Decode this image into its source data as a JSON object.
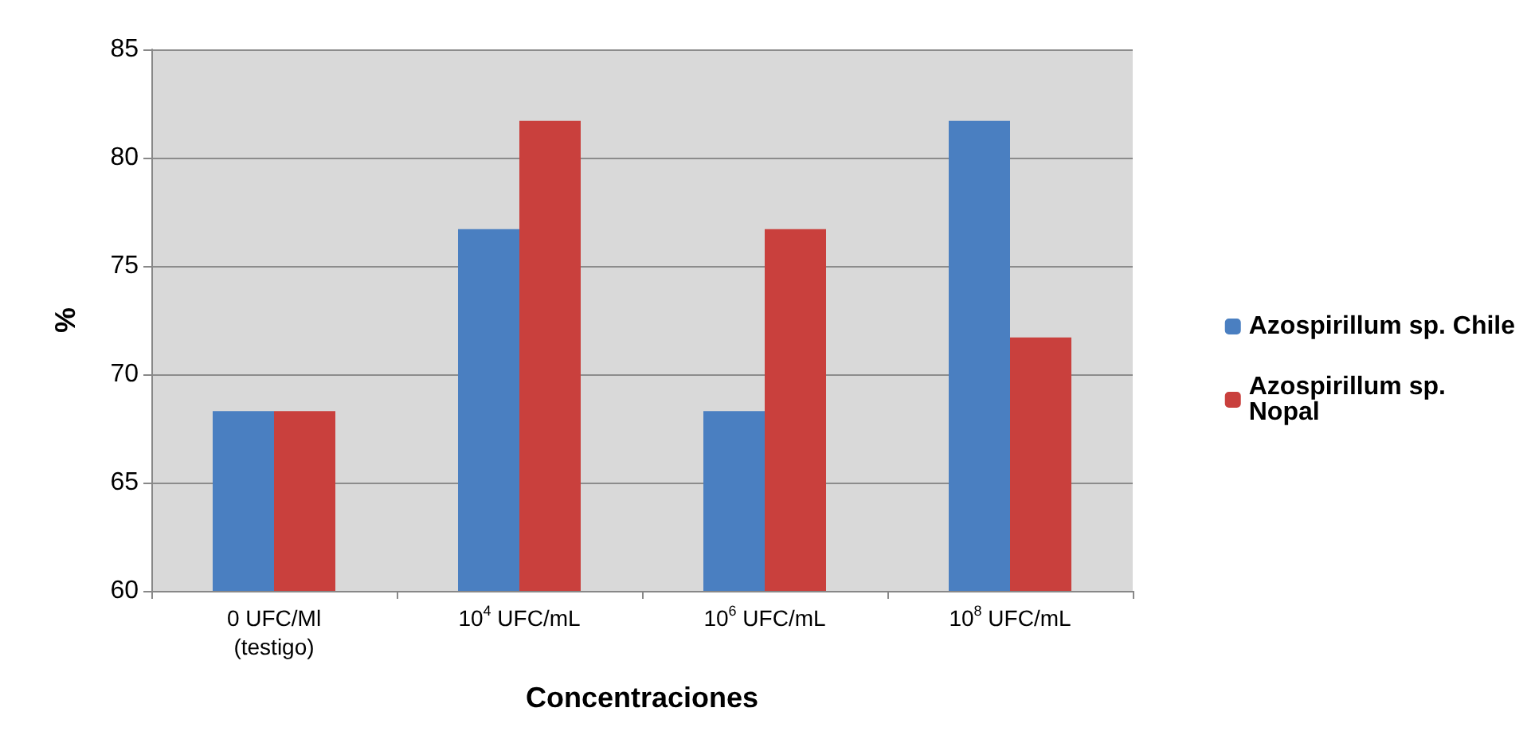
{
  "chart_data": {
    "type": "bar",
    "xlabel": "Concentraciones",
    "ylabel": "%",
    "categories": [
      "0 UFC/Ml\n(testigo)",
      "10$^{4}$ UFC/mL",
      "10$^{6}$ UFC/mL",
      "10$^{8}$ UFC/mL"
    ],
    "series": [
      {
        "name": "Azospirillum sp. Chile",
        "color": "#4a7fc1",
        "values": [
          68.3,
          76.7,
          68.3,
          81.7
        ]
      },
      {
        "name": "Azospirillum sp. Nopal",
        "color": "#c9403d",
        "values": [
          68.3,
          81.7,
          76.7,
          71.7
        ]
      }
    ],
    "ylim": [
      60,
      85
    ],
    "yticks": [
      60,
      65,
      70,
      75,
      80,
      85
    ],
    "grid": "y",
    "legend": "right"
  }
}
